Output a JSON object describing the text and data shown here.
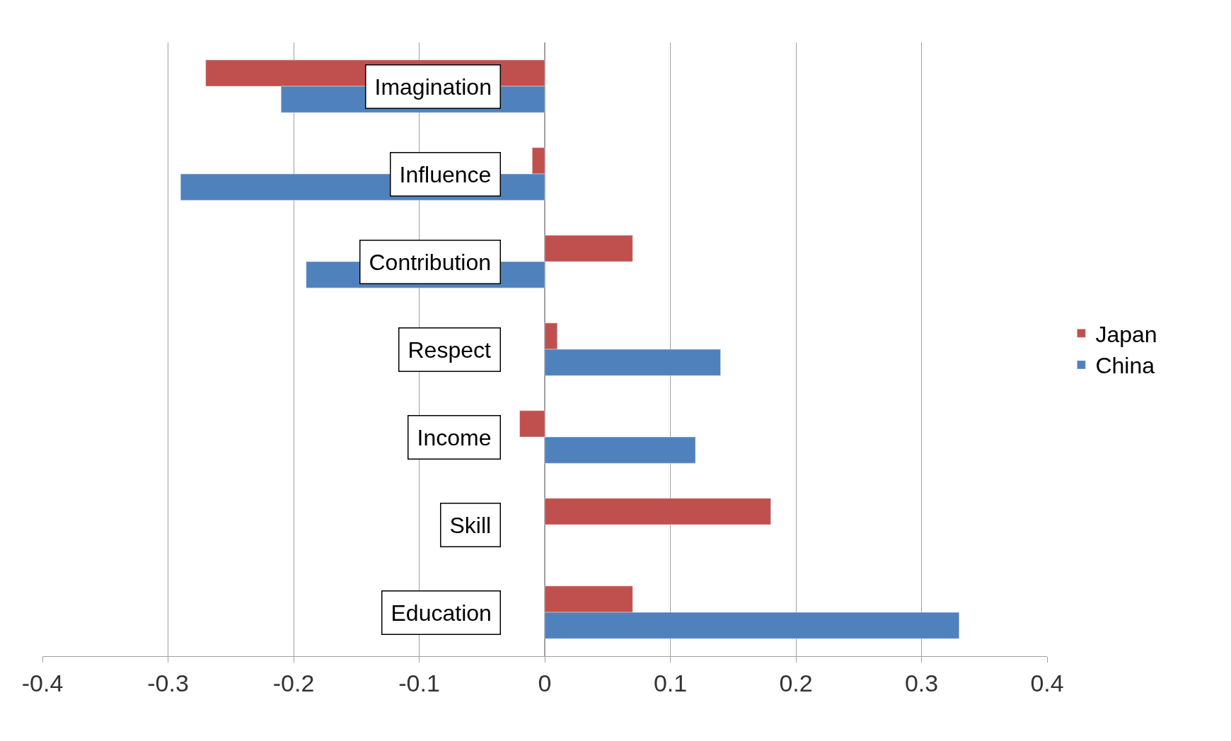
{
  "chart_data": {
    "type": "bar",
    "orientation": "horizontal",
    "categories": [
      "Imagination",
      "Influence",
      "Contribution",
      "Respect",
      "Income",
      "Skill",
      "Education"
    ],
    "series": [
      {
        "name": "Japan",
        "color": "#c0504d",
        "values": [
          -0.27,
          -0.01,
          0.07,
          0.01,
          -0.02,
          0.18,
          0.07
        ]
      },
      {
        "name": "China",
        "color": "#4f81bd",
        "values": [
          -0.21,
          -0.29,
          -0.19,
          0.14,
          0.12,
          null,
          0.33
        ]
      }
    ],
    "xlim": [
      -0.4,
      0.4
    ],
    "xticks": [
      -0.4,
      -0.3,
      -0.2,
      -0.1,
      0,
      0.1,
      0.2,
      0.3,
      0.4
    ],
    "grid": "x",
    "legend": "right"
  }
}
